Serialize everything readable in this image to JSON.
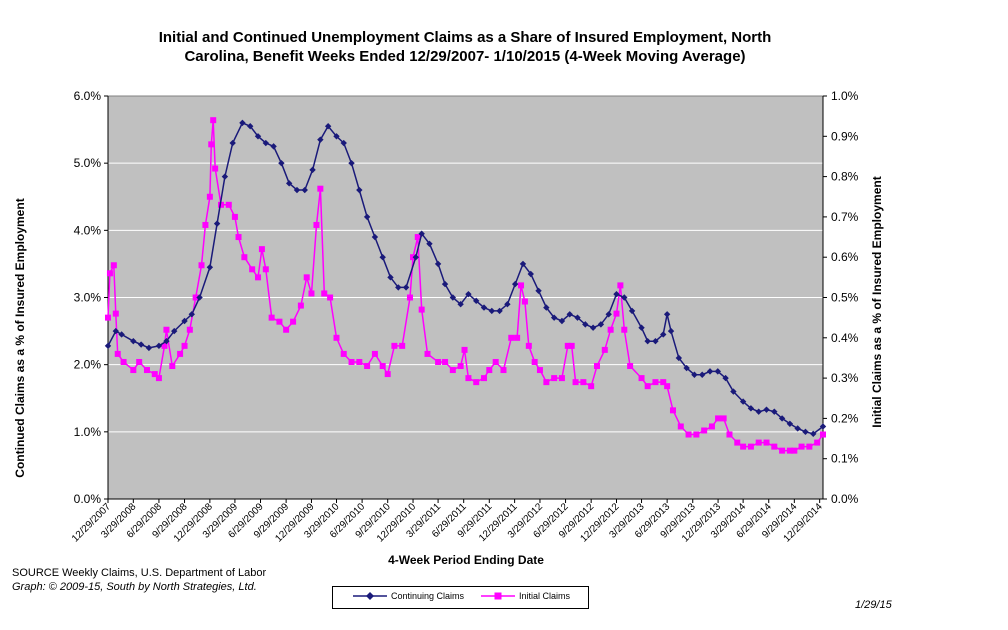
{
  "chart_data": {
    "type": "line",
    "title_line1": "Initial and Continued Unemployment Claims as a Share of Insured Employment, North",
    "title_line2": "Carolina, Benefit Weeks Ended 12/29/2007- 1/10/2015 (4-Week Moving Average)",
    "xlabel": "4-Week Period Ending Date",
    "ylabel_left": "Continued Claims as a % of Insured Employment",
    "ylabel_right": "Initial Claims as a % of Insured Employment",
    "x_range": [
      "12/29/2007",
      "1/10/2015"
    ],
    "x_tick_labels": [
      "12/29/2007",
      "3/29/2008",
      "6/29/2008",
      "9/29/2008",
      "12/29/2008",
      "3/29/2009",
      "6/29/2009",
      "9/29/2009",
      "12/29/2009",
      "3/29/2010",
      "6/29/2010",
      "9/29/2010",
      "12/29/2010",
      "3/29/2011",
      "6/29/2011",
      "9/29/2011",
      "12/29/2011",
      "3/29/2012",
      "6/29/2012",
      "9/29/2012",
      "12/29/2012",
      "3/29/2013",
      "6/29/2013",
      "9/29/2013",
      "12/29/2013",
      "3/29/2014",
      "6/29/2014",
      "9/29/2014",
      "12/29/2014"
    ],
    "y_left": {
      "ticks": [
        "0.0%",
        "1.0%",
        "2.0%",
        "3.0%",
        "4.0%",
        "5.0%",
        "6.0%"
      ],
      "ylim": [
        0,
        6
      ]
    },
    "y_right": {
      "ticks": [
        "0.0%",
        "0.1%",
        "0.2%",
        "0.3%",
        "0.4%",
        "0.5%",
        "0.6%",
        "0.7%",
        "0.8%",
        "0.9%",
        "1.0%"
      ],
      "ylim": [
        0,
        1
      ]
    },
    "grid": "horizontal",
    "legend_position": "bottom",
    "series": [
      {
        "name": "Continuing Claims",
        "axis": "left",
        "color": "#1a1a7a",
        "marker": "diamond",
        "points": [
          [
            "2007-12-29",
            2.28
          ],
          [
            "2008-01-26",
            2.5
          ],
          [
            "2008-02-16",
            2.45
          ],
          [
            "2008-03-29",
            2.35
          ],
          [
            "2008-04-26",
            2.3
          ],
          [
            "2008-05-24",
            2.25
          ],
          [
            "2008-06-29",
            2.28
          ],
          [
            "2008-07-26",
            2.35
          ],
          [
            "2008-08-23",
            2.5
          ],
          [
            "2008-09-29",
            2.65
          ],
          [
            "2008-10-25",
            2.75
          ],
          [
            "2008-11-22",
            3.0
          ],
          [
            "2008-12-29",
            3.45
          ],
          [
            "2009-01-24",
            4.1
          ],
          [
            "2009-02-21",
            4.8
          ],
          [
            "2009-03-21",
            5.3
          ],
          [
            "2009-04-25",
            5.6
          ],
          [
            "2009-05-23",
            5.55
          ],
          [
            "2009-06-20",
            5.4
          ],
          [
            "2009-07-18",
            5.3
          ],
          [
            "2009-08-15",
            5.25
          ],
          [
            "2009-09-12",
            5.0
          ],
          [
            "2009-10-10",
            4.7
          ],
          [
            "2009-11-07",
            4.6
          ],
          [
            "2009-12-05",
            4.6
          ],
          [
            "2010-01-02",
            4.9
          ],
          [
            "2010-01-30",
            5.35
          ],
          [
            "2010-02-27",
            5.55
          ],
          [
            "2010-03-29",
            5.4
          ],
          [
            "2010-04-24",
            5.3
          ],
          [
            "2010-05-22",
            5.0
          ],
          [
            "2010-06-19",
            4.6
          ],
          [
            "2010-07-17",
            4.2
          ],
          [
            "2010-08-14",
            3.9
          ],
          [
            "2010-09-11",
            3.6
          ],
          [
            "2010-10-09",
            3.3
          ],
          [
            "2010-11-06",
            3.15
          ],
          [
            "2010-12-04",
            3.15
          ],
          [
            "2011-01-08",
            3.6
          ],
          [
            "2011-01-29",
            3.95
          ],
          [
            "2011-02-26",
            3.8
          ],
          [
            "2011-03-29",
            3.5
          ],
          [
            "2011-04-23",
            3.2
          ],
          [
            "2011-05-21",
            3.0
          ],
          [
            "2011-06-18",
            2.9
          ],
          [
            "2011-07-16",
            3.05
          ],
          [
            "2011-08-13",
            2.95
          ],
          [
            "2011-09-10",
            2.85
          ],
          [
            "2011-10-08",
            2.8
          ],
          [
            "2011-11-05",
            2.8
          ],
          [
            "2011-12-03",
            2.9
          ],
          [
            "2011-12-31",
            3.2
          ],
          [
            "2012-01-28",
            3.5
          ],
          [
            "2012-02-25",
            3.35
          ],
          [
            "2012-03-24",
            3.1
          ],
          [
            "2012-04-21",
            2.85
          ],
          [
            "2012-05-19",
            2.7
          ],
          [
            "2012-06-16",
            2.65
          ],
          [
            "2012-07-14",
            2.75
          ],
          [
            "2012-08-11",
            2.7
          ],
          [
            "2012-09-08",
            2.6
          ],
          [
            "2012-10-06",
            2.55
          ],
          [
            "2012-11-03",
            2.6
          ],
          [
            "2012-12-01",
            2.75
          ],
          [
            "2012-12-29",
            3.05
          ],
          [
            "2013-01-26",
            3.0
          ],
          [
            "2013-02-23",
            2.8
          ],
          [
            "2013-03-29",
            2.55
          ],
          [
            "2013-04-20",
            2.35
          ],
          [
            "2013-05-18",
            2.35
          ],
          [
            "2013-06-15",
            2.45
          ],
          [
            "2013-06-29",
            2.75
          ],
          [
            "2013-07-13",
            2.5
          ],
          [
            "2013-08-10",
            2.1
          ],
          [
            "2013-09-07",
            1.95
          ],
          [
            "2013-10-05",
            1.85
          ],
          [
            "2013-11-02",
            1.85
          ],
          [
            "2013-11-30",
            1.9
          ],
          [
            "2013-12-28",
            1.9
          ],
          [
            "2014-01-25",
            1.8
          ],
          [
            "2014-02-22",
            1.6
          ],
          [
            "2014-03-29",
            1.45
          ],
          [
            "2014-04-26",
            1.35
          ],
          [
            "2014-05-24",
            1.3
          ],
          [
            "2014-06-21",
            1.33
          ],
          [
            "2014-07-19",
            1.3
          ],
          [
            "2014-08-16",
            1.2
          ],
          [
            "2014-09-13",
            1.12
          ],
          [
            "2014-10-11",
            1.05
          ],
          [
            "2014-11-08",
            1.0
          ],
          [
            "2014-12-06",
            0.97
          ],
          [
            "2015-01-10",
            1.08
          ]
        ]
      },
      {
        "name": "Initial Claims",
        "axis": "right",
        "color": "#ff00ff",
        "marker": "square",
        "points": [
          [
            "2007-12-29",
            0.45
          ],
          [
            "2008-01-05",
            0.56
          ],
          [
            "2008-01-19",
            0.58
          ],
          [
            "2008-01-26",
            0.46
          ],
          [
            "2008-02-02",
            0.36
          ],
          [
            "2008-02-23",
            0.34
          ],
          [
            "2008-03-29",
            0.32
          ],
          [
            "2008-04-19",
            0.34
          ],
          [
            "2008-05-17",
            0.32
          ],
          [
            "2008-06-14",
            0.31
          ],
          [
            "2008-06-29",
            0.3
          ],
          [
            "2008-07-19",
            0.38
          ],
          [
            "2008-07-26",
            0.42
          ],
          [
            "2008-08-16",
            0.33
          ],
          [
            "2008-09-13",
            0.36
          ],
          [
            "2008-09-29",
            0.38
          ],
          [
            "2008-10-18",
            0.42
          ],
          [
            "2008-11-08",
            0.5
          ],
          [
            "2008-11-29",
            0.58
          ],
          [
            "2008-12-13",
            0.68
          ],
          [
            "2008-12-29",
            0.75
          ],
          [
            "2009-01-03",
            0.88
          ],
          [
            "2009-01-10",
            0.94
          ],
          [
            "2009-01-17",
            0.82
          ],
          [
            "2009-02-07",
            0.73
          ],
          [
            "2009-03-07",
            0.73
          ],
          [
            "2009-03-29",
            0.7
          ],
          [
            "2009-04-11",
            0.65
          ],
          [
            "2009-05-02",
            0.6
          ],
          [
            "2009-05-30",
            0.57
          ],
          [
            "2009-06-20",
            0.55
          ],
          [
            "2009-07-04",
            0.62
          ],
          [
            "2009-07-18",
            0.57
          ],
          [
            "2009-08-08",
            0.45
          ],
          [
            "2009-09-05",
            0.44
          ],
          [
            "2009-09-29",
            0.42
          ],
          [
            "2009-10-24",
            0.44
          ],
          [
            "2009-11-21",
            0.48
          ],
          [
            "2009-12-12",
            0.55
          ],
          [
            "2009-12-29",
            0.51
          ],
          [
            "2010-01-16",
            0.68
          ],
          [
            "2010-01-30",
            0.77
          ],
          [
            "2010-02-13",
            0.51
          ],
          [
            "2010-03-06",
            0.5
          ],
          [
            "2010-03-29",
            0.4
          ],
          [
            "2010-04-24",
            0.36
          ],
          [
            "2010-05-22",
            0.34
          ],
          [
            "2010-06-19",
            0.34
          ],
          [
            "2010-07-17",
            0.33
          ],
          [
            "2010-08-14",
            0.36
          ],
          [
            "2010-09-11",
            0.33
          ],
          [
            "2010-09-29",
            0.31
          ],
          [
            "2010-10-23",
            0.38
          ],
          [
            "2010-11-20",
            0.38
          ],
          [
            "2010-12-18",
            0.5
          ],
          [
            "2010-12-29",
            0.6
          ],
          [
            "2011-01-15",
            0.65
          ],
          [
            "2011-01-29",
            0.47
          ],
          [
            "2011-02-19",
            0.36
          ],
          [
            "2011-03-29",
            0.34
          ],
          [
            "2011-04-23",
            0.34
          ],
          [
            "2011-05-21",
            0.32
          ],
          [
            "2011-06-18",
            0.33
          ],
          [
            "2011-07-02",
            0.37
          ],
          [
            "2011-07-16",
            0.3
          ],
          [
            "2011-08-13",
            0.29
          ],
          [
            "2011-09-10",
            0.3
          ],
          [
            "2011-09-29",
            0.32
          ],
          [
            "2011-10-22",
            0.34
          ],
          [
            "2011-11-19",
            0.32
          ],
          [
            "2011-12-17",
            0.4
          ],
          [
            "2012-01-07",
            0.4
          ],
          [
            "2012-01-21",
            0.53
          ],
          [
            "2012-02-04",
            0.49
          ],
          [
            "2012-02-18",
            0.38
          ],
          [
            "2012-03-10",
            0.34
          ],
          [
            "2012-03-29",
            0.32
          ],
          [
            "2012-04-21",
            0.29
          ],
          [
            "2012-05-19",
            0.3
          ],
          [
            "2012-06-16",
            0.3
          ],
          [
            "2012-07-07",
            0.38
          ],
          [
            "2012-07-21",
            0.38
          ],
          [
            "2012-08-04",
            0.29
          ],
          [
            "2012-09-01",
            0.29
          ],
          [
            "2012-09-29",
            0.28
          ],
          [
            "2012-10-20",
            0.33
          ],
          [
            "2012-11-17",
            0.37
          ],
          [
            "2012-12-08",
            0.42
          ],
          [
            "2012-12-29",
            0.46
          ],
          [
            "2013-01-12",
            0.53
          ],
          [
            "2013-01-26",
            0.42
          ],
          [
            "2013-02-16",
            0.33
          ],
          [
            "2013-03-29",
            0.3
          ],
          [
            "2013-04-20",
            0.28
          ],
          [
            "2013-05-18",
            0.29
          ],
          [
            "2013-06-15",
            0.29
          ],
          [
            "2013-06-29",
            0.28
          ],
          [
            "2013-07-20",
            0.22
          ],
          [
            "2013-08-17",
            0.18
          ],
          [
            "2013-09-14",
            0.16
          ],
          [
            "2013-10-12",
            0.16
          ],
          [
            "2013-11-09",
            0.17
          ],
          [
            "2013-12-07",
            0.18
          ],
          [
            "2013-12-29",
            0.2
          ],
          [
            "2014-01-18",
            0.2
          ],
          [
            "2014-02-08",
            0.16
          ],
          [
            "2014-03-08",
            0.14
          ],
          [
            "2014-03-29",
            0.13
          ],
          [
            "2014-04-26",
            0.13
          ],
          [
            "2014-05-24",
            0.14
          ],
          [
            "2014-06-21",
            0.14
          ],
          [
            "2014-07-19",
            0.13
          ],
          [
            "2014-08-16",
            0.12
          ],
          [
            "2014-09-13",
            0.12
          ],
          [
            "2014-09-29",
            0.12
          ],
          [
            "2014-10-25",
            0.13
          ],
          [
            "2014-11-22",
            0.13
          ],
          [
            "2014-12-20",
            0.14
          ],
          [
            "2015-01-10",
            0.16
          ]
        ]
      }
    ]
  },
  "footer": {
    "source_line1": "SOURCE  Weekly Claims, U.S. Department of Labor",
    "source_line2": "Graph: © 2009-15, South by North Strategies, Ltd.",
    "date_stamp": "1/29/15"
  }
}
